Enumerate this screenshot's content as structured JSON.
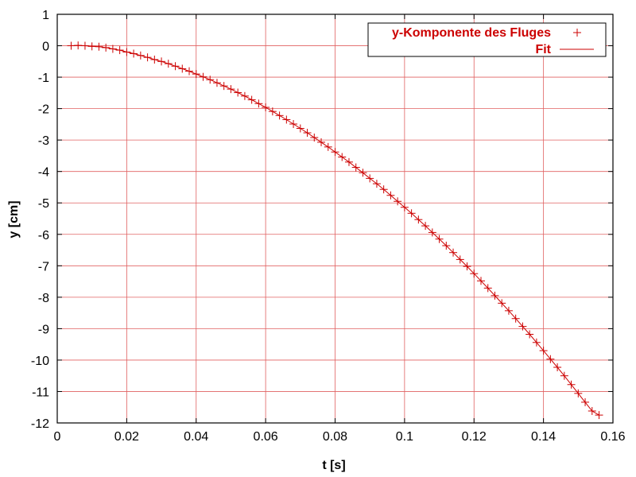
{
  "chart_data": {
    "type": "scatter",
    "xlabel": "t [s]",
    "ylabel": "y [cm]",
    "xlim": [
      0,
      0.16
    ],
    "ylim": [
      -12,
      1
    ],
    "x_ticks": [
      0,
      0.02,
      0.04,
      0.06,
      0.08,
      0.1,
      0.12,
      0.14,
      0.16
    ],
    "x_tick_labels": [
      "0",
      "0.02",
      "0.04",
      "0.06",
      "0.08",
      "0.1",
      "0.12",
      "0.14",
      "0.16"
    ],
    "y_ticks": [
      1,
      0,
      -1,
      -2,
      -3,
      -4,
      -5,
      -6,
      -7,
      -8,
      -9,
      -10,
      -11,
      -12
    ],
    "y_tick_labels": [
      "1",
      "0",
      "-1",
      "-2",
      "-3",
      "-4",
      "-5",
      "-6",
      "-7",
      "-8",
      "-9",
      "-10",
      "-11",
      "-12"
    ],
    "grid": true,
    "legend_position": "top-right",
    "series": [
      {
        "name": "y-Komponente des Fluges",
        "marker": "plus",
        "color": "#cc0000",
        "points": [
          [
            0.004,
            0.0
          ],
          [
            0.006,
            0.01
          ],
          [
            0.008,
            0.0
          ],
          [
            0.01,
            -0.02
          ],
          [
            0.012,
            -0.03
          ],
          [
            0.014,
            -0.06
          ],
          [
            0.016,
            -0.1
          ],
          [
            0.018,
            -0.14
          ],
          [
            0.02,
            -0.2
          ],
          [
            0.022,
            -0.25
          ],
          [
            0.024,
            -0.31
          ],
          [
            0.026,
            -0.37
          ],
          [
            0.028,
            -0.44
          ],
          [
            0.03,
            -0.5
          ],
          [
            0.032,
            -0.57
          ],
          [
            0.034,
            -0.65
          ],
          [
            0.036,
            -0.73
          ],
          [
            0.038,
            -0.81
          ],
          [
            0.04,
            -0.9
          ],
          [
            0.042,
            -0.99
          ],
          [
            0.044,
            -1.08
          ],
          [
            0.046,
            -1.18
          ],
          [
            0.048,
            -1.28
          ],
          [
            0.05,
            -1.38
          ],
          [
            0.052,
            -1.49
          ],
          [
            0.054,
            -1.6
          ],
          [
            0.056,
            -1.72
          ],
          [
            0.058,
            -1.84
          ],
          [
            0.06,
            -1.96
          ],
          [
            0.062,
            -2.09
          ],
          [
            0.064,
            -2.22
          ],
          [
            0.066,
            -2.35
          ],
          [
            0.068,
            -2.49
          ],
          [
            0.07,
            -2.63
          ],
          [
            0.072,
            -2.77
          ],
          [
            0.074,
            -2.92
          ],
          [
            0.076,
            -3.07
          ],
          [
            0.078,
            -3.22
          ],
          [
            0.08,
            -3.38
          ],
          [
            0.082,
            -3.54
          ],
          [
            0.084,
            -3.7
          ],
          [
            0.086,
            -3.87
          ],
          [
            0.088,
            -4.04
          ],
          [
            0.09,
            -4.22
          ],
          [
            0.092,
            -4.39
          ],
          [
            0.094,
            -4.57
          ],
          [
            0.096,
            -4.76
          ],
          [
            0.098,
            -4.95
          ],
          [
            0.1,
            -5.14
          ],
          [
            0.102,
            -5.33
          ],
          [
            0.104,
            -5.53
          ],
          [
            0.106,
            -5.73
          ],
          [
            0.108,
            -5.94
          ],
          [
            0.11,
            -6.15
          ],
          [
            0.112,
            -6.36
          ],
          [
            0.114,
            -6.58
          ],
          [
            0.116,
            -6.8
          ],
          [
            0.118,
            -7.02
          ],
          [
            0.12,
            -7.25
          ],
          [
            0.122,
            -7.48
          ],
          [
            0.124,
            -7.71
          ],
          [
            0.126,
            -7.95
          ],
          [
            0.128,
            -8.19
          ],
          [
            0.13,
            -8.43
          ],
          [
            0.132,
            -8.68
          ],
          [
            0.134,
            -8.93
          ],
          [
            0.136,
            -9.18
          ],
          [
            0.138,
            -9.44
          ],
          [
            0.14,
            -9.7
          ],
          [
            0.142,
            -9.97
          ],
          [
            0.144,
            -10.23
          ],
          [
            0.146,
            -10.5
          ],
          [
            0.148,
            -10.78
          ],
          [
            0.15,
            -11.06
          ],
          [
            0.152,
            -11.34
          ],
          [
            0.154,
            -11.62
          ],
          [
            0.156,
            -11.75
          ]
        ]
      },
      {
        "name": "Fit",
        "marker": "line",
        "color": "#cc0000",
        "points": [
          [
            0.004,
            0.0
          ],
          [
            0.006,
            0.01
          ],
          [
            0.008,
            0.0
          ],
          [
            0.01,
            -0.02
          ],
          [
            0.012,
            -0.03
          ],
          [
            0.014,
            -0.06
          ],
          [
            0.016,
            -0.1
          ],
          [
            0.018,
            -0.14
          ],
          [
            0.02,
            -0.2
          ],
          [
            0.022,
            -0.25
          ],
          [
            0.024,
            -0.31
          ],
          [
            0.026,
            -0.37
          ],
          [
            0.028,
            -0.44
          ],
          [
            0.03,
            -0.5
          ],
          [
            0.032,
            -0.57
          ],
          [
            0.034,
            -0.65
          ],
          [
            0.036,
            -0.73
          ],
          [
            0.038,
            -0.81
          ],
          [
            0.04,
            -0.9
          ],
          [
            0.042,
            -0.99
          ],
          [
            0.044,
            -1.08
          ],
          [
            0.046,
            -1.18
          ],
          [
            0.048,
            -1.28
          ],
          [
            0.05,
            -1.38
          ],
          [
            0.052,
            -1.49
          ],
          [
            0.054,
            -1.6
          ],
          [
            0.056,
            -1.72
          ],
          [
            0.058,
            -1.84
          ],
          [
            0.06,
            -1.96
          ],
          [
            0.062,
            -2.09
          ],
          [
            0.064,
            -2.22
          ],
          [
            0.066,
            -2.35
          ],
          [
            0.068,
            -2.49
          ],
          [
            0.07,
            -2.63
          ],
          [
            0.072,
            -2.77
          ],
          [
            0.074,
            -2.92
          ],
          [
            0.076,
            -3.07
          ],
          [
            0.078,
            -3.22
          ],
          [
            0.08,
            -3.38
          ],
          [
            0.082,
            -3.54
          ],
          [
            0.084,
            -3.7
          ],
          [
            0.086,
            -3.87
          ],
          [
            0.088,
            -4.04
          ],
          [
            0.09,
            -4.22
          ],
          [
            0.092,
            -4.39
          ],
          [
            0.094,
            -4.57
          ],
          [
            0.096,
            -4.76
          ],
          [
            0.098,
            -4.95
          ],
          [
            0.1,
            -5.14
          ],
          [
            0.102,
            -5.33
          ],
          [
            0.104,
            -5.53
          ],
          [
            0.106,
            -5.73
          ],
          [
            0.108,
            -5.94
          ],
          [
            0.11,
            -6.15
          ],
          [
            0.112,
            -6.36
          ],
          [
            0.114,
            -6.58
          ],
          [
            0.116,
            -6.8
          ],
          [
            0.118,
            -7.02
          ],
          [
            0.12,
            -7.25
          ],
          [
            0.122,
            -7.48
          ],
          [
            0.124,
            -7.71
          ],
          [
            0.126,
            -7.95
          ],
          [
            0.128,
            -8.19
          ],
          [
            0.13,
            -8.43
          ],
          [
            0.132,
            -8.68
          ],
          [
            0.134,
            -8.93
          ],
          [
            0.136,
            -9.18
          ],
          [
            0.138,
            -9.44
          ],
          [
            0.14,
            -9.7
          ],
          [
            0.142,
            -9.97
          ],
          [
            0.144,
            -10.23
          ],
          [
            0.146,
            -10.5
          ],
          [
            0.148,
            -10.78
          ],
          [
            0.15,
            -11.06
          ],
          [
            0.152,
            -11.34
          ],
          [
            0.154,
            -11.62
          ],
          [
            0.156,
            -11.75
          ]
        ]
      }
    ]
  }
}
